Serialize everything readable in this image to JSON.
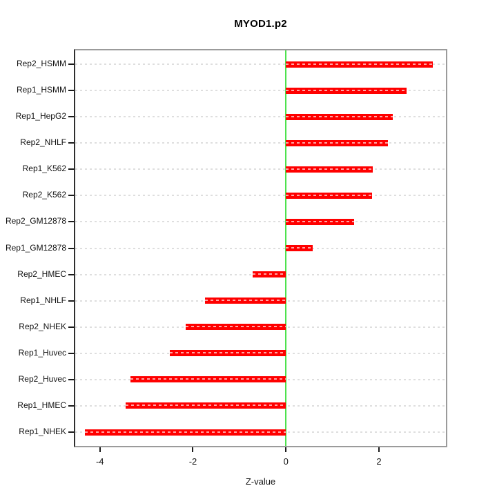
{
  "title": "MYOD1.p2",
  "chart_data": {
    "type": "bar",
    "orientation": "horizontal",
    "title": "MYOD1.p2",
    "xlabel": "Z-value",
    "ylabel": "",
    "categories": [
      "Rep2_HSMM",
      "Rep1_HSMM",
      "Rep1_HepG2",
      "Rep2_NHLF",
      "Rep1_K562",
      "Rep2_K562",
      "Rep2_GM12878",
      "Rep1_GM12878",
      "Rep2_HMEC",
      "Rep1_NHLF",
      "Rep2_NHEK",
      "Rep1_Huvec",
      "Rep2_Huvec",
      "Rep1_HMEC",
      "Rep1_NHEK"
    ],
    "values": [
      3.16,
      2.59,
      2.3,
      2.2,
      1.86,
      1.85,
      1.47,
      0.58,
      -0.72,
      -1.74,
      -2.15,
      -2.5,
      -3.34,
      -3.45,
      -4.32
    ],
    "xticks": [
      -4,
      -2,
      0,
      2
    ],
    "xlim": [
      -4.56,
      3.47
    ],
    "grid": true,
    "legend": false,
    "colors": {
      "bar": "#ff0000",
      "bar_dash_overlay": "rgba(255,255,255,0.65)",
      "zero_line": "#4ee24e",
      "gridline": "#dedede",
      "box_border": "#9b9b9b",
      "axis_text": "#111111",
      "background": "#ffffff"
    }
  }
}
